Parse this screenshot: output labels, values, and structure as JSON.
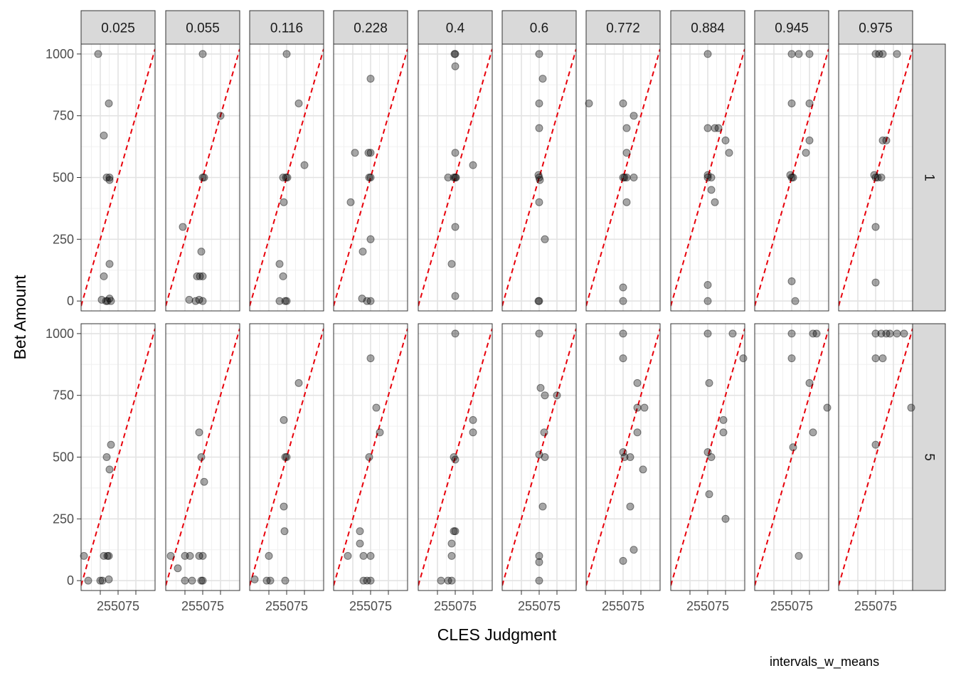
{
  "caption": "intervals_w_means",
  "chart_data": {
    "type": "scatter",
    "title": "",
    "xlabel": "CLES Judgment",
    "ylabel": "Bet Amount",
    "x_tick_labels_shown": "255075",
    "x_ticks": [
      25,
      50,
      75
    ],
    "y_ticks": [
      0,
      250,
      500,
      750,
      1000
    ],
    "ylim": [
      -40,
      1040
    ],
    "xlim": [
      -2,
      102
    ],
    "grid": true,
    "facet_columns": [
      "0.025",
      "0.055",
      "0.116",
      "0.228",
      "0.4",
      "0.6",
      "0.772",
      "0.884",
      "0.945",
      "0.975"
    ],
    "facet_rows": [
      "1",
      "5"
    ],
    "reference_line": {
      "slope": 10,
      "intercept": 0,
      "color": "#e8000b",
      "style": "dashed"
    },
    "point_color": "#000000",
    "point_opacity": 0.35,
    "panels": [
      {
        "col": "0.025",
        "row": "1",
        "points": [
          [
            22,
            1000
          ],
          [
            37,
            800
          ],
          [
            30,
            670
          ],
          [
            34,
            500
          ],
          [
            38,
            500
          ],
          [
            38,
            490
          ],
          [
            38,
            150
          ],
          [
            30,
            100
          ],
          [
            27,
            5
          ],
          [
            33,
            0
          ],
          [
            35,
            0
          ],
          [
            38,
            10
          ],
          [
            40,
            0
          ]
        ]
      },
      {
        "col": "0.055",
        "row": "1",
        "points": [
          [
            50,
            1000
          ],
          [
            75,
            750
          ],
          [
            50,
            500
          ],
          [
            52,
            500
          ],
          [
            22,
            300
          ],
          [
            48,
            200
          ],
          [
            42,
            100
          ],
          [
            46,
            100
          ],
          [
            50,
            100
          ],
          [
            31,
            5
          ],
          [
            40,
            0
          ],
          [
            45,
            5
          ],
          [
            50,
            0
          ]
        ]
      },
      {
        "col": "0.116",
        "row": "1",
        "points": [
          [
            50,
            1000
          ],
          [
            67,
            800
          ],
          [
            75,
            550
          ],
          [
            45,
            500
          ],
          [
            49,
            500
          ],
          [
            51,
            500
          ],
          [
            46,
            400
          ],
          [
            40,
            150
          ],
          [
            45,
            100
          ],
          [
            40,
            0
          ],
          [
            48,
            0
          ],
          [
            50,
            0
          ]
        ]
      },
      {
        "col": "0.228",
        "row": "1",
        "points": [
          [
            50,
            900
          ],
          [
            28,
            600
          ],
          [
            47,
            600
          ],
          [
            50,
            600
          ],
          [
            48,
            500
          ],
          [
            50,
            500
          ],
          [
            22,
            400
          ],
          [
            50,
            250
          ],
          [
            39,
            200
          ],
          [
            38,
            10
          ],
          [
            45,
            0
          ],
          [
            50,
            0
          ]
        ]
      },
      {
        "col": "0.4",
        "row": "1",
        "points": [
          [
            50,
            1000
          ],
          [
            49,
            1000
          ],
          [
            50,
            950
          ],
          [
            50,
            600
          ],
          [
            75,
            550
          ],
          [
            40,
            500
          ],
          [
            48,
            500
          ],
          [
            50,
            500
          ],
          [
            51,
            500
          ],
          [
            50,
            300
          ],
          [
            45,
            150
          ],
          [
            50,
            20
          ]
        ]
      },
      {
        "col": "0.6",
        "row": "1",
        "points": [
          [
            50,
            1000
          ],
          [
            55,
            900
          ],
          [
            50,
            800
          ],
          [
            50,
            700
          ],
          [
            49,
            510
          ],
          [
            50,
            500
          ],
          [
            51,
            490
          ],
          [
            50,
            400
          ],
          [
            58,
            250
          ],
          [
            49,
            0
          ],
          [
            50,
            0
          ]
        ]
      },
      {
        "col": "0.772",
        "row": "1",
        "points": [
          [
            2,
            800
          ],
          [
            50,
            800
          ],
          [
            65,
            750
          ],
          [
            55,
            700
          ],
          [
            55,
            600
          ],
          [
            50,
            500
          ],
          [
            52,
            500
          ],
          [
            55,
            500
          ],
          [
            65,
            500
          ],
          [
            55,
            400
          ],
          [
            50,
            55
          ],
          [
            50,
            0
          ]
        ]
      },
      {
        "col": "0.884",
        "row": "1",
        "points": [
          [
            50,
            1000
          ],
          [
            50,
            700
          ],
          [
            60,
            700
          ],
          [
            65,
            700
          ],
          [
            75,
            650
          ],
          [
            80,
            600
          ],
          [
            50,
            510
          ],
          [
            50,
            500
          ],
          [
            55,
            500
          ],
          [
            55,
            450
          ],
          [
            60,
            400
          ],
          [
            50,
            65
          ],
          [
            50,
            0
          ]
        ]
      },
      {
        "col": "0.945",
        "row": "1",
        "points": [
          [
            50,
            1000
          ],
          [
            60,
            1000
          ],
          [
            75,
            1000
          ],
          [
            75,
            800
          ],
          [
            50,
            800
          ],
          [
            75,
            650
          ],
          [
            70,
            600
          ],
          [
            48,
            510
          ],
          [
            50,
            500
          ],
          [
            52,
            500
          ],
          [
            50,
            80
          ],
          [
            55,
            0
          ]
        ]
      },
      {
        "col": "0.975",
        "row": "1",
        "points": [
          [
            50,
            1000
          ],
          [
            55,
            1000
          ],
          [
            60,
            1000
          ],
          [
            80,
            1000
          ],
          [
            60,
            650
          ],
          [
            65,
            650
          ],
          [
            48,
            510
          ],
          [
            50,
            500
          ],
          [
            53,
            500
          ],
          [
            58,
            500
          ],
          [
            50,
            300
          ],
          [
            50,
            75
          ]
        ]
      },
      {
        "col": "0.025",
        "row": "5",
        "points": [
          [
            2,
            100
          ],
          [
            40,
            550
          ],
          [
            34,
            500
          ],
          [
            38,
            450
          ],
          [
            30,
            100
          ],
          [
            35,
            100
          ],
          [
            37,
            100
          ],
          [
            8,
            0
          ],
          [
            25,
            0
          ],
          [
            28,
            0
          ],
          [
            37,
            5
          ]
        ]
      },
      {
        "col": "0.055",
        "row": "5",
        "points": [
          [
            5,
            100
          ],
          [
            45,
            600
          ],
          [
            48,
            500
          ],
          [
            52,
            400
          ],
          [
            25,
            100
          ],
          [
            32,
            100
          ],
          [
            45,
            100
          ],
          [
            50,
            100
          ],
          [
            15,
            50
          ],
          [
            25,
            0
          ],
          [
            35,
            0
          ],
          [
            48,
            0
          ],
          [
            50,
            0
          ]
        ]
      },
      {
        "col": "0.116",
        "row": "5",
        "points": [
          [
            67,
            800
          ],
          [
            46,
            650
          ],
          [
            48,
            500
          ],
          [
            50,
            500
          ],
          [
            46,
            300
          ],
          [
            47,
            200
          ],
          [
            25,
            100
          ],
          [
            5,
            5
          ],
          [
            22,
            0
          ],
          [
            27,
            0
          ],
          [
            48,
            0
          ]
        ]
      },
      {
        "col": "0.228",
        "row": "5",
        "points": [
          [
            50,
            900
          ],
          [
            58,
            700
          ],
          [
            63,
            600
          ],
          [
            48,
            500
          ],
          [
            35,
            200
          ],
          [
            35,
            150
          ],
          [
            18,
            100
          ],
          [
            40,
            100
          ],
          [
            50,
            100
          ],
          [
            40,
            0
          ],
          [
            45,
            0
          ],
          [
            50,
            0
          ]
        ]
      },
      {
        "col": "0.4",
        "row": "5",
        "points": [
          [
            50,
            1000
          ],
          [
            75,
            650
          ],
          [
            75,
            600
          ],
          [
            48,
            500
          ],
          [
            50,
            490
          ],
          [
            48,
            200
          ],
          [
            50,
            200
          ],
          [
            45,
            150
          ],
          [
            45,
            100
          ],
          [
            30,
            0
          ],
          [
            40,
            0
          ],
          [
            45,
            0
          ]
        ]
      },
      {
        "col": "0.6",
        "row": "5",
        "points": [
          [
            50,
            1000
          ],
          [
            52,
            780
          ],
          [
            58,
            750
          ],
          [
            75,
            750
          ],
          [
            57,
            600
          ],
          [
            50,
            510
          ],
          [
            58,
            500
          ],
          [
            55,
            300
          ],
          [
            50,
            100
          ],
          [
            50,
            75
          ],
          [
            50,
            0
          ]
        ]
      },
      {
        "col": "0.772",
        "row": "5",
        "points": [
          [
            50,
            1000
          ],
          [
            50,
            900
          ],
          [
            70,
            800
          ],
          [
            70,
            700
          ],
          [
            80,
            700
          ],
          [
            70,
            600
          ],
          [
            50,
            520
          ],
          [
            52,
            500
          ],
          [
            60,
            500
          ],
          [
            78,
            450
          ],
          [
            60,
            300
          ],
          [
            65,
            125
          ],
          [
            50,
            80
          ]
        ]
      },
      {
        "col": "0.884",
        "row": "5",
        "points": [
          [
            50,
            1000
          ],
          [
            85,
            1000
          ],
          [
            100,
            900
          ],
          [
            52,
            800
          ],
          [
            72,
            650
          ],
          [
            72,
            600
          ],
          [
            50,
            520
          ],
          [
            55,
            500
          ],
          [
            52,
            350
          ],
          [
            75,
            250
          ]
        ]
      },
      {
        "col": "0.945",
        "row": "5",
        "points": [
          [
            50,
            1000
          ],
          [
            80,
            1000
          ],
          [
            85,
            1000
          ],
          [
            50,
            900
          ],
          [
            75,
            800
          ],
          [
            100,
            700
          ],
          [
            80,
            600
          ],
          [
            52,
            540
          ],
          [
            60,
            100
          ]
        ]
      },
      {
        "col": "0.975",
        "row": "5",
        "points": [
          [
            50,
            1000
          ],
          [
            58,
            1000
          ],
          [
            65,
            1000
          ],
          [
            70,
            1000
          ],
          [
            80,
            1000
          ],
          [
            90,
            1000
          ],
          [
            50,
            900
          ],
          [
            60,
            900
          ],
          [
            100,
            700
          ],
          [
            50,
            550
          ]
        ]
      }
    ]
  }
}
